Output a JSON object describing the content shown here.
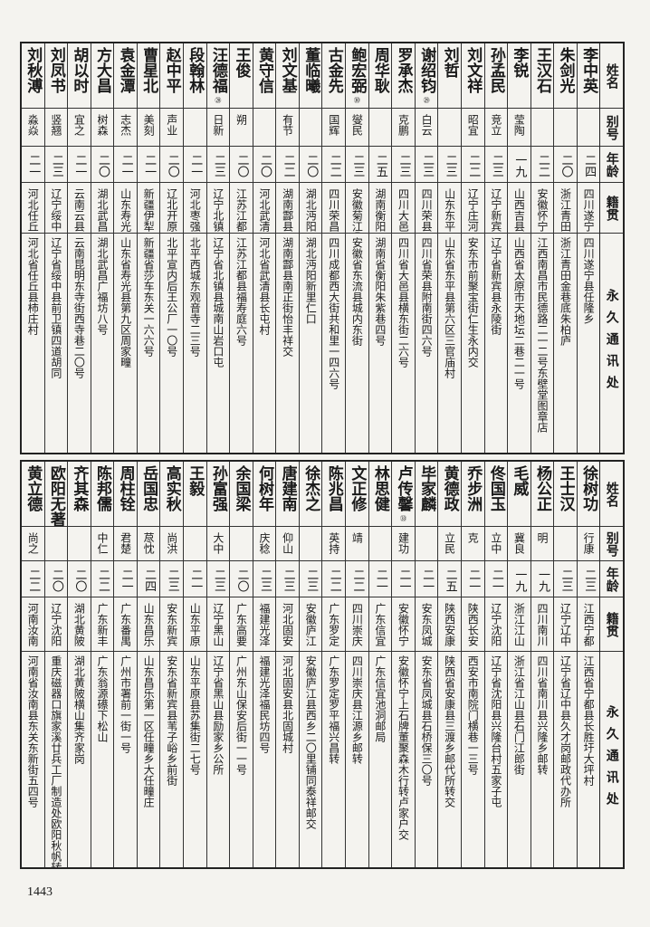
{
  "headers": [
    "姓名",
    "别号",
    "年龄",
    "籍贯",
    "永久通讯处"
  ],
  "top_table": [
    {
      "name": "李中英",
      "note": "",
      "alias": "",
      "age": "二四",
      "origin": "四川遂宁",
      "address": "四川遂宁县任隆乡"
    },
    {
      "name": "朱剑光",
      "note": "",
      "alias": "",
      "age": "二〇",
      "origin": "浙江青田",
      "address": "浙江青田金巷底朱柏庐"
    },
    {
      "name": "王汉石",
      "note": "",
      "alias": "",
      "age": "二二",
      "origin": "安徽怀宁",
      "address": "江西南昌市民德路二一二号东壁堂图章店"
    },
    {
      "name": "李锐",
      "note": "",
      "alias": "莹陶",
      "age": "一九",
      "origin": "山西吉县",
      "address": "山西省太原市天地坛二巷二一号"
    },
    {
      "name": "孙孟民",
      "note": "",
      "alias": "竞立",
      "age": "二三",
      "origin": "辽宁新宾",
      "address": "辽宁省新宾县永陵街"
    },
    {
      "name": "刘文祥",
      "note": "",
      "alias": "昭宜",
      "age": "二二",
      "origin": "辽宁庄河",
      "address": "安东市前聚宝街仁生永内交"
    },
    {
      "name": "刘哲",
      "note": "",
      "alias": "",
      "age": "二三",
      "origin": "山东东平",
      "address": "山东省东平县第六区三官庙村"
    },
    {
      "name": "谢绍钧",
      "note": "㉙",
      "alias": "白云",
      "age": "二三",
      "origin": "四川荣县",
      "address": "四川省荣县附南街四六号"
    },
    {
      "name": "罗承杰",
      "note": "",
      "alias": "克鹏",
      "age": "二三",
      "origin": "四川大邑",
      "address": "四川省大邑县横东街二六号"
    },
    {
      "name": "周华耿",
      "note": "",
      "alias": "",
      "age": "二五",
      "origin": "湖南衡阳",
      "address": "湖南省衡阳朱紫巷四号"
    },
    {
      "name": "鲍宏弼",
      "note": "㉚",
      "alias": "燮民",
      "age": "二三",
      "origin": "安徽菊江㉛",
      "address": "安徽省东流县城内东街"
    },
    {
      "name": "古金先",
      "note": "",
      "alias": "国辉",
      "age": "二二",
      "origin": "四川荣昌",
      "address": "四川成都西大街共和里一四六号"
    },
    {
      "name": "董临曦",
      "note": "",
      "alias": "",
      "age": "二〇",
      "origin": "湖北沔阳",
      "address": "湖北沔阳新里仁口"
    },
    {
      "name": "刘文基",
      "note": "",
      "alias": "有节",
      "age": "二二",
      "origin": "湖南酃县",
      "address": "湖南酃县南正街怡丰祥交"
    },
    {
      "name": "黄守信",
      "note": "",
      "alias": "",
      "age": "二〇",
      "origin": "河北武清",
      "address": "河北省武清县长屯村"
    },
    {
      "name": "王俊",
      "note": "",
      "alias": "朔",
      "age": "二〇",
      "origin": "江苏江都",
      "address": "江苏江都县福寿庭六号"
    },
    {
      "name": "汪德福",
      "note": "㉘",
      "alias": "日新",
      "age": "二三",
      "origin": "辽宁北镇",
      "address": "辽宁省北镇县城南山岩口屯"
    },
    {
      "name": "段翰林",
      "note": "",
      "alias": "",
      "age": "二一",
      "origin": "河北枣强",
      "address": "北平西城东观音寺二三号"
    },
    {
      "name": "赵中平",
      "note": "",
      "alias": "声业",
      "age": "二〇",
      "origin": "辽北开原",
      "address": "北平宣内后王公厂一〇号"
    },
    {
      "name": "曹星北",
      "note": "",
      "alias": "美刻",
      "age": "二一",
      "origin": "新疆伊犁",
      "address": "新疆省莎车东关一六六号"
    },
    {
      "name": "袁金潭",
      "note": "",
      "alias": "志杰",
      "age": "二一",
      "origin": "山东寿光",
      "address": "山东省寿光县第九区周家疃"
    },
    {
      "name": "方大昌",
      "note": "",
      "alias": "树森",
      "age": "二〇",
      "origin": "湖北武昌",
      "address": "湖北武昌广福坊八号"
    },
    {
      "name": "胡以时",
      "note": "",
      "alias": "宜之",
      "age": "二一",
      "origin": "云南云县",
      "address": "云南昆明东寺街西寺巷二〇号"
    },
    {
      "name": "刘凤书",
      "note": "",
      "alias": "竖翘",
      "age": "二三",
      "origin": "辽宁绥中",
      "address": "辽宁省绥中县前卫镇四道胡同"
    },
    {
      "name": "刘秋溥",
      "note": "",
      "alias": "淼焱",
      "age": "二一",
      "origin": "河北任丘",
      "address": "河北省任丘县柿庄村"
    }
  ],
  "bottom_table": [
    {
      "name": "徐树功",
      "note": "",
      "alias": "行康",
      "age": "二三",
      "origin": "江西宁都",
      "address": "江西省宁都县长胜圩大坪村"
    },
    {
      "name": "王士汉",
      "note": "",
      "alias": "",
      "age": "二三",
      "origin": "辽宁辽中",
      "address": "辽宁省辽中县久才岗邮政代办所"
    },
    {
      "name": "杨公正",
      "note": "",
      "alias": "明",
      "age": "一九",
      "origin": "四川南川",
      "address": "四川省南川县兴隆乡邮转"
    },
    {
      "name": "毛威",
      "note": "",
      "alias": "冀良",
      "age": "一九",
      "origin": "浙江江山",
      "address": "浙江省江山县石门江郎街"
    },
    {
      "name": "佟国玉",
      "note": "",
      "alias": "立中",
      "age": "二一",
      "origin": "辽宁沈阳",
      "address": "辽宁省沈阳县兴隆台村五家子屯"
    },
    {
      "name": "乔步洲",
      "note": "",
      "alias": "克",
      "age": "二一",
      "origin": "陕西长安",
      "address": "西安市南院门横巷一三号"
    },
    {
      "name": "黄德政",
      "note": "",
      "alias": "立民",
      "age": "二五",
      "origin": "陕西安康",
      "address": "陕西省安康县三渡乡邮代所转交"
    },
    {
      "name": "毕家麟",
      "note": "",
      "alias": "",
      "age": "二一",
      "origin": "安东凤城",
      "address": "安东省凤城县石桥保三〇号"
    },
    {
      "name": "卢传馨",
      "note": "㉝",
      "alias": "建功",
      "age": "二一",
      "origin": "安徽怀宁",
      "address": "安徽怀宁上石牌董聚森木行转卢家户交"
    },
    {
      "name": "林思健",
      "note": "",
      "alias": "",
      "age": "二一",
      "origin": "广东信宜",
      "address": "广东信宜池洞邮局"
    },
    {
      "name": "文正修",
      "note": "",
      "alias": "靖",
      "age": "二二",
      "origin": "四川崇庆",
      "address": "四川崇庆县江源乡邮转"
    },
    {
      "name": "陈兆昌",
      "note": "",
      "alias": "英持",
      "age": "二二",
      "origin": "广东罗定",
      "address": "广东罗定罗平福兴昌转"
    },
    {
      "name": "徐杰之",
      "note": "",
      "alias": "",
      "age": "二三",
      "origin": "安徽庐江",
      "address": "安徽庐江县西乡二〇里铺同泰祥邮交"
    },
    {
      "name": "唐建南",
      "note": "",
      "alias": "仰山",
      "age": "二三",
      "origin": "河北固安",
      "address": "河北固安县北固城村"
    },
    {
      "name": "何树年",
      "note": "",
      "alias": "庆稔",
      "age": "二三",
      "origin": "福建光泽",
      "address": "福建光泽福民坊四号"
    },
    {
      "name": "余国梁",
      "note": "",
      "alias": "",
      "age": "二〇",
      "origin": "广东高要",
      "address": "广州东山保安后街一一号"
    },
    {
      "name": "孙富强",
      "note": "",
      "alias": "大中",
      "age": "二三",
      "origin": "辽宁黑山",
      "address": "辽宁省黑山县励家乡公所"
    },
    {
      "name": "王毅",
      "note": "",
      "alias": "",
      "age": "二一",
      "origin": "山东平原",
      "address": "山东平原县苏集街二七号"
    },
    {
      "name": "高实秋",
      "note": "",
      "alias": "尚洪",
      "age": "二三",
      "origin": "安东新宾",
      "address": "安东省新宾县苇子峪乡前街"
    },
    {
      "name": "岳国忠",
      "note": "",
      "alias": "荩忱",
      "age": "二四",
      "origin": "山东昌乐",
      "address": "山东昌乐第一区任疃乡大任疃庄"
    },
    {
      "name": "周柱铨",
      "note": "",
      "alias": "君楚",
      "age": "二一",
      "origin": "广东番禺",
      "address": "广州市署前一街一号"
    },
    {
      "name": "陈邦儒",
      "note": "",
      "alias": "中仁",
      "age": "二二",
      "origin": "广东新丰",
      "address": "广东翁源礤下松山"
    },
    {
      "name": "齐其森",
      "note": "",
      "alias": "",
      "age": "二〇",
      "origin": "湖北黄陂",
      "address": "湖北黄陂横山集齐家岗"
    },
    {
      "name": "欧阳无著",
      "note": "",
      "alias": "",
      "age": "二〇",
      "origin": "辽宁沈阳",
      "address": "重庆磁器口旗家溪廿兵工厂制造处欧阳秋帆转"
    },
    {
      "name": "黄立德",
      "note": "",
      "alias": "尚之",
      "age": "二二",
      "origin": "河南汝南",
      "address": "河南省汝南县东关东新街五四号"
    }
  ],
  "page_number": "1443"
}
